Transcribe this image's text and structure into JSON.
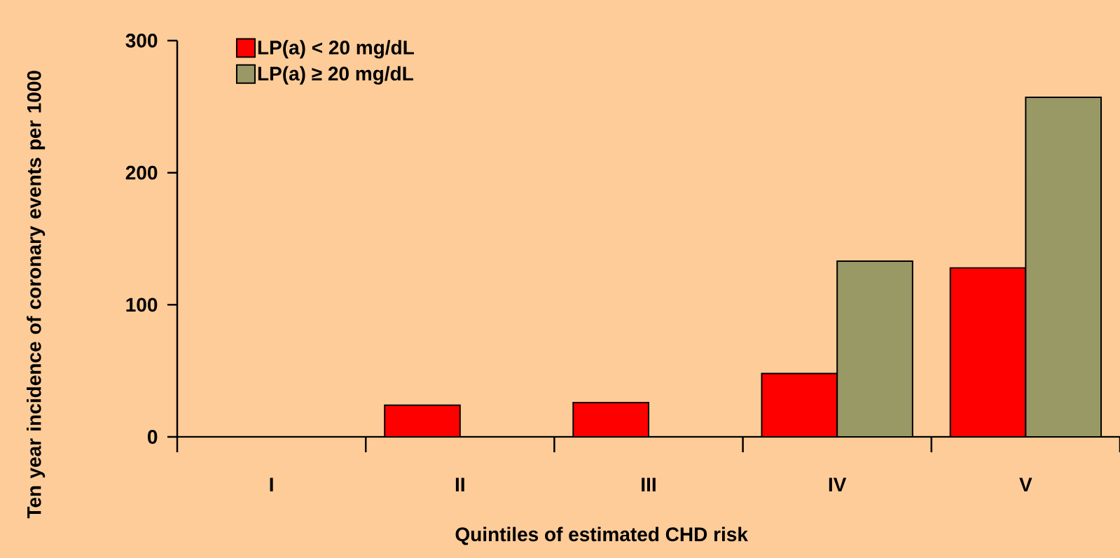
{
  "chart_data": {
    "type": "bar",
    "xlabel": "Quintiles of estimated CHD risk",
    "ylabel": "Ten year incidence of coronary events per 1000",
    "categories": [
      "I",
      "II",
      "III",
      "IV",
      "V"
    ],
    "series": [
      {
        "name": "LP(a) < 20 mg/dL",
        "color": "#ff0000",
        "values": [
          null,
          24,
          26,
          48,
          128
        ]
      },
      {
        "name": "LP(a) ≥ 20 mg/dL",
        "color": "#999966",
        "values": [
          null,
          null,
          null,
          133,
          257
        ]
      }
    ],
    "ylim": [
      0,
      300
    ],
    "yticks": [
      0,
      100,
      200,
      300
    ],
    "grid": false,
    "legend": "top left"
  }
}
